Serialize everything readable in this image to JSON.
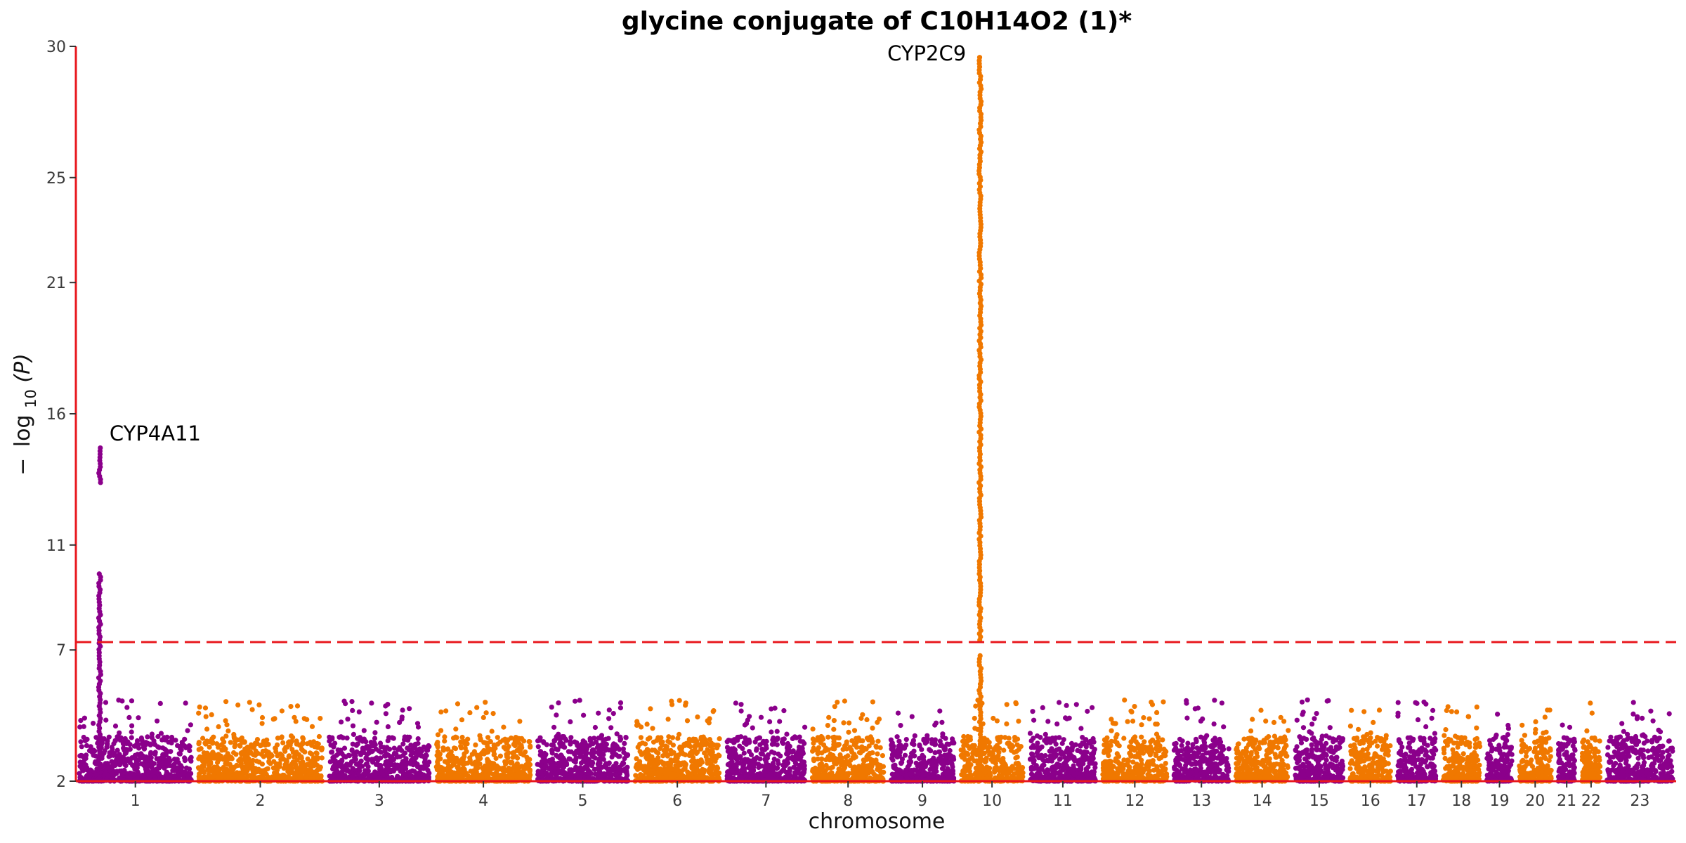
{
  "chart_data": {
    "type": "scatter",
    "subtype": "manhattan",
    "title": "glycine conjugate of C10H14O2 (1)*",
    "xlabel": "chromosome",
    "ylabel_parts": {
      "minus": "−",
      "log": "log",
      "sub": "10",
      "arg": "(P)"
    },
    "ylim": [
      2,
      30
    ],
    "yticks": [
      2,
      7,
      11,
      16,
      21,
      25,
      30
    ],
    "significance_threshold": 7.3,
    "threshold_style": "dashed red",
    "axis_color": "#e8171d",
    "colors": {
      "odd": "#8b008b",
      "even": "#f07800",
      "threshold": "#e8171d"
    },
    "chromosomes": [
      {
        "label": "1",
        "start": 0.5,
        "end": 1.5,
        "color": "odd"
      },
      {
        "label": "2",
        "start": 1.5,
        "end": 2.6,
        "color": "even"
      },
      {
        "label": "3",
        "start": 2.6,
        "end": 3.5,
        "color": "odd"
      },
      {
        "label": "4",
        "start": 3.5,
        "end": 4.35,
        "color": "even"
      },
      {
        "label": "5",
        "start": 4.35,
        "end": 5.17,
        "color": "odd"
      },
      {
        "label": "6",
        "start": 5.17,
        "end": 5.94,
        "color": "even"
      },
      {
        "label": "7",
        "start": 5.94,
        "end": 6.66,
        "color": "odd"
      },
      {
        "label": "8",
        "start": 6.66,
        "end": 7.32,
        "color": "even"
      },
      {
        "label": "9",
        "start": 7.32,
        "end": 7.91,
        "color": "odd"
      },
      {
        "label": "10",
        "start": 7.91,
        "end": 8.49,
        "color": "even"
      },
      {
        "label": "11",
        "start": 8.49,
        "end": 9.1,
        "color": "odd"
      },
      {
        "label": "12",
        "start": 9.1,
        "end": 9.7,
        "color": "even"
      },
      {
        "label": "13",
        "start": 9.7,
        "end": 10.22,
        "color": "odd"
      },
      {
        "label": "14",
        "start": 10.22,
        "end": 10.72,
        "color": "even"
      },
      {
        "label": "15",
        "start": 10.72,
        "end": 11.18,
        "color": "odd"
      },
      {
        "label": "16",
        "start": 11.18,
        "end": 11.58,
        "color": "even"
      },
      {
        "label": "17",
        "start": 11.58,
        "end": 11.96,
        "color": "odd"
      },
      {
        "label": "18",
        "start": 11.96,
        "end": 12.33,
        "color": "even"
      },
      {
        "label": "19",
        "start": 12.33,
        "end": 12.6,
        "color": "odd"
      },
      {
        "label": "20",
        "start": 12.6,
        "end": 12.93,
        "color": "even"
      },
      {
        "label": "21",
        "start": 12.93,
        "end": 13.13,
        "color": "odd"
      },
      {
        "label": "22",
        "start": 13.13,
        "end": 13.34,
        "color": "even"
      },
      {
        "label": "23",
        "start": 13.34,
        "end": 13.95,
        "color": "odd"
      }
    ],
    "peaks": [
      {
        "chromosome": "1",
        "position": 0.7,
        "gene": "CYP4A11",
        "max_value": 14.8
      },
      {
        "chromosome": "10",
        "position": 8.1,
        "gene": "CYP2C9",
        "max_value": 29.7
      }
    ]
  }
}
